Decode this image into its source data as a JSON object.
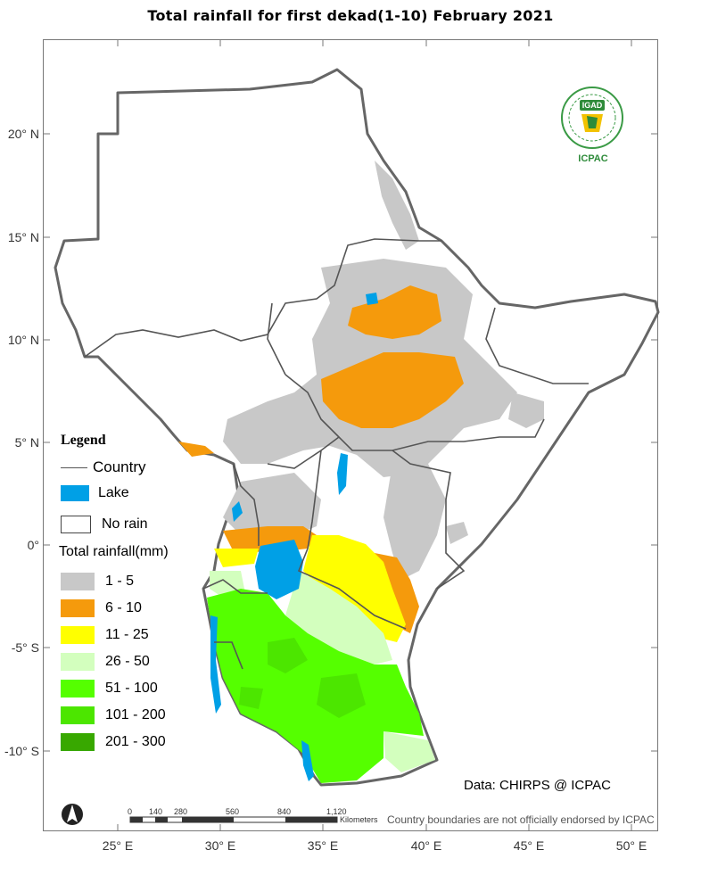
{
  "title": "Total rainfall for  first  dekad(1-10)  February 2021",
  "axes": {
    "lat_labels": [
      "20° N",
      "15° N",
      "10° N",
      "5° N",
      "0°",
      "-5° S",
      "-10° S"
    ],
    "lon_labels": [
      "25° E",
      "30° E",
      "35° E",
      "40° E",
      "45° E",
      "50° E"
    ]
  },
  "legend": {
    "title": "Legend",
    "country_label": "Country",
    "lake_label": "Lake",
    "no_rain_label": "No rain",
    "rainfall_heading": "Total rainfall(mm)",
    "classes": [
      {
        "label": "1 - 5",
        "color": "#c8c8c8"
      },
      {
        "label": "6 - 10",
        "color": "#f59a0c"
      },
      {
        "label": "11 - 25",
        "color": "#ffff00"
      },
      {
        "label": "26 - 50",
        "color": "#d3ffbe"
      },
      {
        "label": "51 - 100",
        "color": "#55ff00"
      },
      {
        "label": "101 - 200",
        "color": "#4ce600"
      },
      {
        "label": "201 - 300",
        "color": "#38a800"
      }
    ],
    "lake_color": "#00a0e6"
  },
  "logo": {
    "name": "IGAD",
    "text": "ICPAC"
  },
  "scale_bar": {
    "ticks": [
      "0",
      "140",
      "280",
      "560",
      "840",
      "1,120"
    ],
    "unit": "Kilometers"
  },
  "source": "Data: CHIRPS @ ICPAC",
  "disclaimer": "Country boundaries are not officially endorsed by ICPAC",
  "north_arrow": "north-arrow-icon"
}
